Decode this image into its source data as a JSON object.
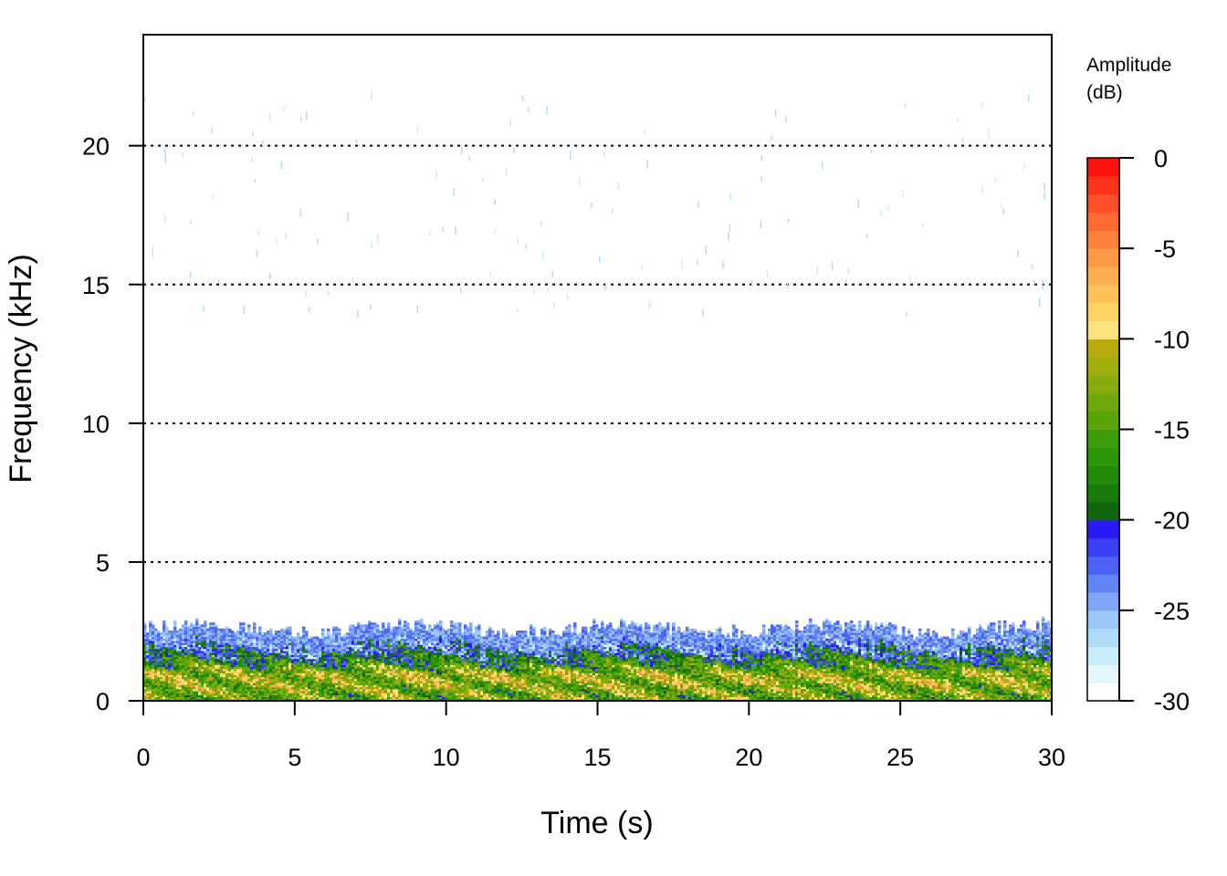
{
  "chart_data": {
    "type": "heatmap",
    "subtype": "spectrogram",
    "title": "",
    "xlabel": "Time (s)",
    "ylabel": "Frequency (kHz)",
    "xlim": [
      0,
      30
    ],
    "ylim": [
      0,
      24
    ],
    "x_ticks": [
      0,
      5,
      10,
      15,
      20,
      25,
      30
    ],
    "y_ticks": [
      0,
      5,
      10,
      15,
      20
    ],
    "x_tick_labels": [
      "0",
      "5",
      "10",
      "15",
      "20",
      "25",
      "30"
    ],
    "y_tick_labels": [
      "0",
      "5",
      "10",
      "15",
      "20"
    ],
    "grid": {
      "horizontal_dotted_at": [
        5,
        10,
        15,
        20
      ]
    },
    "energy_band": {
      "description_kHz": "most energy concentrated below ~2 kHz across the whole 0-30 s span",
      "max_energy_freq_kHz": 1.0,
      "upper_edge_kHz": 2.3,
      "peak_amplitude_dB": -8,
      "sparse_high_freq_noise_kHz": [
        14,
        22
      ]
    },
    "colorbar": {
      "title_line1": "Amplitude",
      "title_line2": "(dB)",
      "range": [
        -30,
        0
      ],
      "ticks": [
        0,
        -5,
        -10,
        -15,
        -20,
        -25,
        -30
      ],
      "tick_labels": [
        "0",
        "-5",
        "-10",
        "-15",
        "-20",
        "-25",
        "-30"
      ],
      "colors_low_to_high": [
        "#ffffff",
        "#e3f5fd",
        "#c9ecfc",
        "#b0dcfa",
        "#9ec8f8",
        "#7fa7f7",
        "#6285f6",
        "#4d63f5",
        "#3a3ff4",
        "#2a18f5",
        "#12660d",
        "#187a0b",
        "#238a0c",
        "#2e960b",
        "#3d9c08",
        "#58a409",
        "#6ea80a",
        "#87aa0c",
        "#a0ae0d",
        "#b8aa0c",
        "#fde27f",
        "#fdd466",
        "#fdc25a",
        "#fdae4e",
        "#fd9a45",
        "#fd833d",
        "#fd6a33",
        "#fd5028",
        "#fd341c",
        "#fd120e"
      ]
    }
  }
}
